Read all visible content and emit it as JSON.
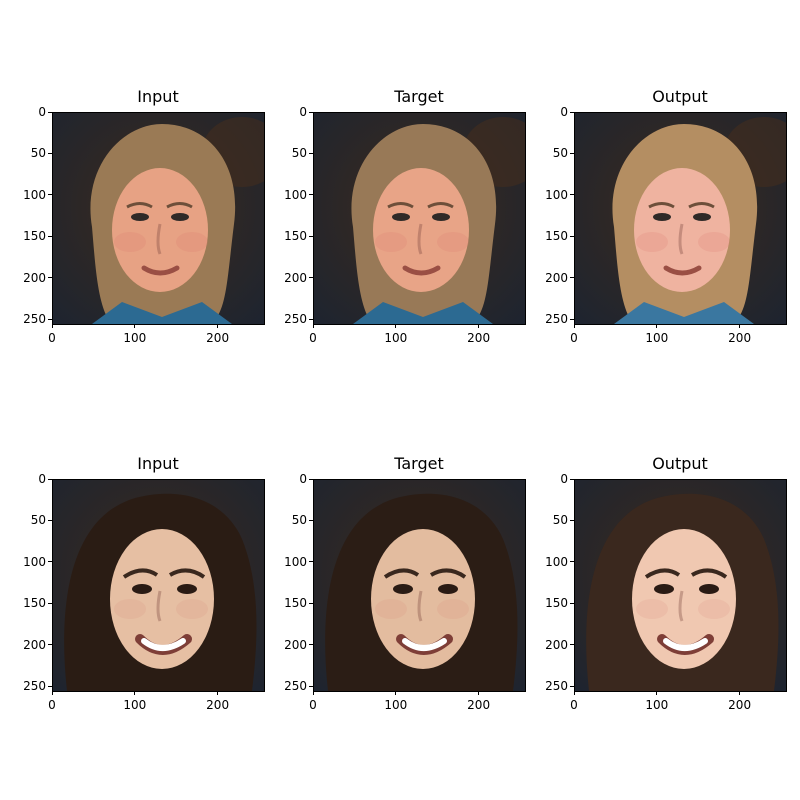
{
  "figure": {
    "rows": [
      {
        "panels": [
          {
            "title": "Input",
            "subject": "older-woman",
            "bg": "#1d2430",
            "accent": "#3b2a1d",
            "skin": "#e7a284",
            "hair": "#9a7a55",
            "shirt": "#2c6a92"
          },
          {
            "title": "Target",
            "subject": "older-woman",
            "bg": "#1b222c",
            "accent": "#3a2a1e",
            "skin": "#e8a487",
            "hair": "#987957",
            "shirt": "#2c6a92"
          },
          {
            "title": "Output",
            "subject": "older-woman",
            "bg": "#2a2422",
            "accent": "#4a3a33",
            "skin": "#efb3a0",
            "hair": "#b48e62",
            "shirt": "#3a77a0"
          }
        ]
      },
      {
        "panels": [
          {
            "title": "Input",
            "subject": "young-woman",
            "bg": "#1a120d",
            "accent": "#2a1b14",
            "skin": "#e6bfa3",
            "hair": "#2a1c14",
            "shirt": "#000000"
          },
          {
            "title": "Target",
            "subject": "young-woman",
            "bg": "#1b130e",
            "accent": "#2a1c15",
            "skin": "#e3bc9f",
            "hair": "#2b1d15",
            "shirt": "#000000"
          },
          {
            "title": "Output",
            "subject": "young-woman",
            "bg": "#1b1410",
            "accent": "#3b2a22",
            "skin": "#f0c8b1",
            "hair": "#3a281e",
            "shirt": "#000000"
          }
        ]
      }
    ],
    "y_ticks": [
      "0",
      "50",
      "100",
      "150",
      "200",
      "250"
    ],
    "x_ticks": [
      "0",
      "100",
      "200"
    ]
  }
}
